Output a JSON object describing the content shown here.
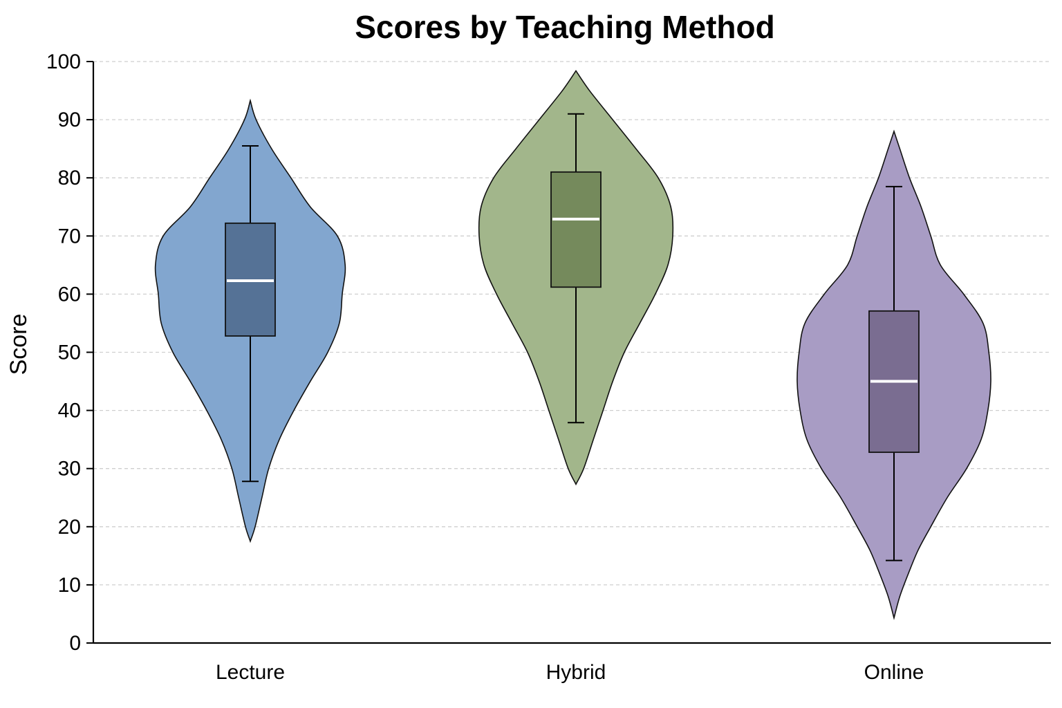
{
  "chart_data": {
    "type": "violin",
    "title": "Scores by Teaching Method",
    "xlabel": "",
    "ylabel": "Score",
    "ylim": [
      0,
      100
    ],
    "yticks": [
      0,
      10,
      20,
      30,
      40,
      50,
      60,
      70,
      80,
      90,
      100
    ],
    "grid": "horizontal dashed",
    "categories": [
      "Lecture",
      "Hybrid",
      "Online"
    ],
    "series": [
      {
        "category": "Lecture",
        "violin_color": "#82a6cf",
        "box_color": "#557296",
        "min": 17.5,
        "max": 93.3,
        "whisker_low": 27.8,
        "q1": 52.8,
        "median": 62.3,
        "q3": 72.2,
        "whisker_high": 85.5,
        "density": [
          [
            17.5,
            0.0
          ],
          [
            20,
            0.05
          ],
          [
            25,
            0.12
          ],
          [
            30,
            0.19
          ],
          [
            35,
            0.3
          ],
          [
            40,
            0.45
          ],
          [
            45,
            0.62
          ],
          [
            50,
            0.8
          ],
          [
            55,
            0.92
          ],
          [
            60,
            0.95
          ],
          [
            65,
            0.98
          ],
          [
            70,
            0.9
          ],
          [
            75,
            0.62
          ],
          [
            80,
            0.42
          ],
          [
            85,
            0.22
          ],
          [
            90,
            0.06
          ],
          [
            93.3,
            0.0
          ]
        ]
      },
      {
        "category": "Hybrid",
        "violin_color": "#a2b68b",
        "box_color": "#758a5c",
        "min": 27.3,
        "max": 98.4,
        "whisker_low": 37.9,
        "q1": 61.2,
        "median": 72.9,
        "q3": 81.0,
        "whisker_high": 91.0,
        "density": [
          [
            27.3,
            0.0
          ],
          [
            30,
            0.08
          ],
          [
            35,
            0.18
          ],
          [
            40,
            0.28
          ],
          [
            45,
            0.38
          ],
          [
            50,
            0.5
          ],
          [
            55,
            0.66
          ],
          [
            60,
            0.82
          ],
          [
            65,
            0.95
          ],
          [
            70,
            1.0
          ],
          [
            75,
            0.98
          ],
          [
            80,
            0.85
          ],
          [
            85,
            0.62
          ],
          [
            90,
            0.38
          ],
          [
            95,
            0.14
          ],
          [
            98.4,
            0.0
          ]
        ]
      },
      {
        "category": "Online",
        "violin_color": "#a89cc4",
        "box_color": "#7a6d91",
        "min": 4.3,
        "max": 88.0,
        "whisker_low": 14.2,
        "q1": 32.8,
        "median": 45.0,
        "q3": 57.1,
        "whisker_high": 78.5,
        "density": [
          [
            4.3,
            0.0
          ],
          [
            8,
            0.06
          ],
          [
            12,
            0.15
          ],
          [
            16,
            0.25
          ],
          [
            20,
            0.38
          ],
          [
            25,
            0.55
          ],
          [
            30,
            0.75
          ],
          [
            35,
            0.9
          ],
          [
            40,
            0.97
          ],
          [
            45,
            1.0
          ],
          [
            50,
            0.98
          ],
          [
            55,
            0.92
          ],
          [
            60,
            0.72
          ],
          [
            65,
            0.48
          ],
          [
            70,
            0.38
          ],
          [
            75,
            0.28
          ],
          [
            80,
            0.16
          ],
          [
            85,
            0.06
          ],
          [
            88,
            0.0
          ]
        ]
      }
    ]
  }
}
